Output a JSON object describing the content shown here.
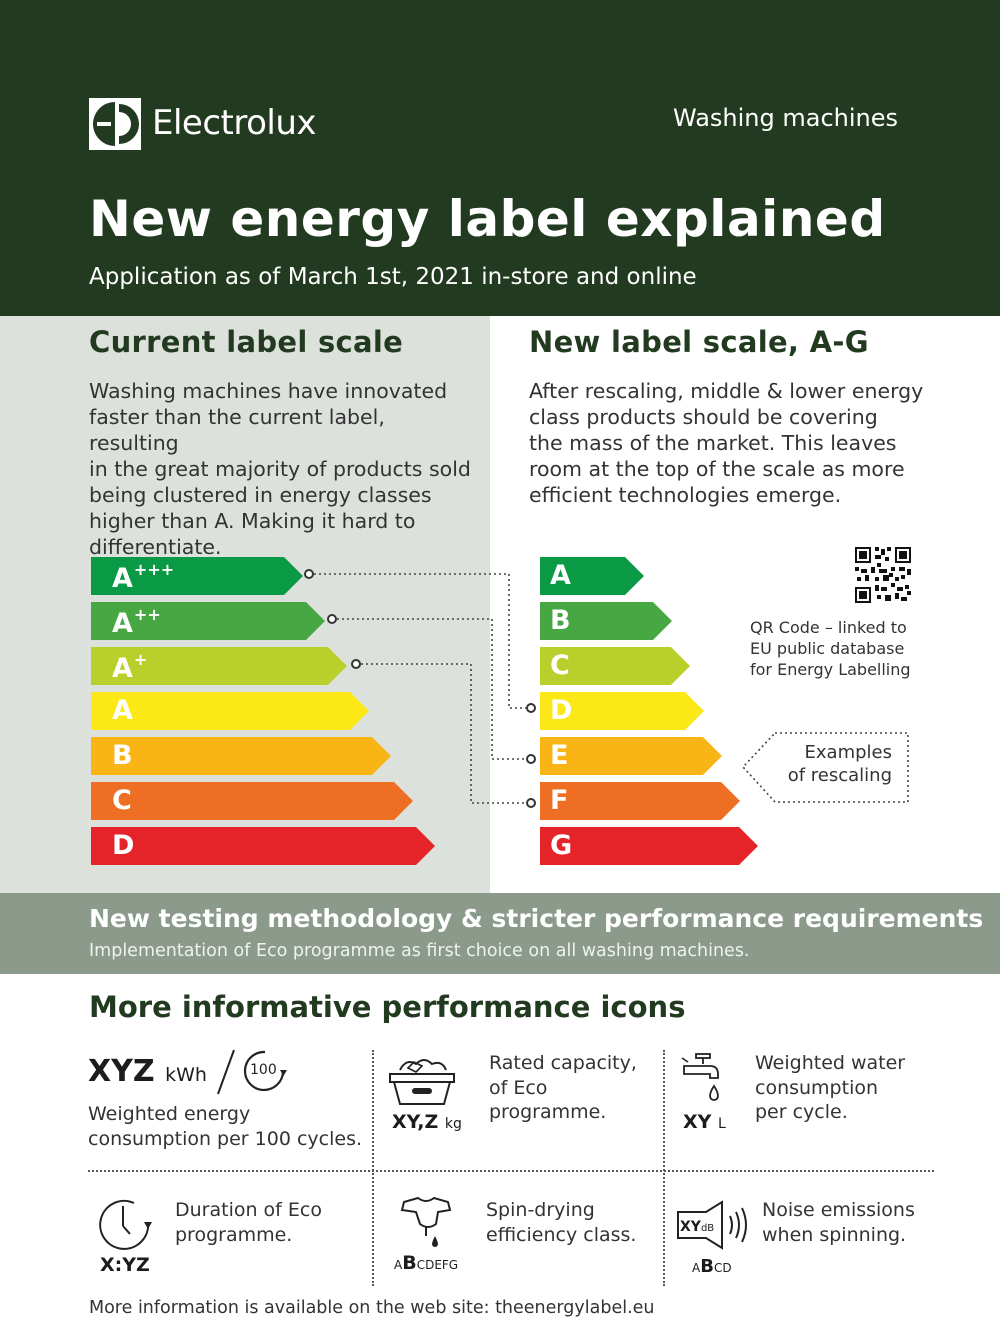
{
  "header": {
    "brand": "Electrolux",
    "category": "Washing machines",
    "title": "New energy label explained",
    "subtitle": "Application as of March 1st, 2021 in-store and online"
  },
  "current_scale": {
    "title": "Current label scale",
    "body": "Washing machines have innovated\nfaster than the current label, resulting\nin the great majority of products sold\nbeing clustered in energy classes\nhigher than A. Making it hard to\ndifferentiate.",
    "classes": [
      {
        "base": "A",
        "sup": "+++",
        "color": "#0a9a45"
      },
      {
        "base": "A",
        "sup": "++",
        "color": "#47a843"
      },
      {
        "base": "A",
        "sup": "+",
        "color": "#b8cf2c"
      },
      {
        "base": "A",
        "sup": "",
        "color": "#fbe816"
      },
      {
        "base": "B",
        "sup": "",
        "color": "#f9b515"
      },
      {
        "base": "C",
        "sup": "",
        "color": "#ee6e23"
      },
      {
        "base": "D",
        "sup": "",
        "color": "#e42429"
      }
    ]
  },
  "new_scale": {
    "title": "New label scale, A-G",
    "body": "After rescaling, middle & lower energy\nclass products should be covering\nthe mass of the market. This leaves\nroom at the top of the scale as more\nefficient technologies emerge.",
    "classes": [
      {
        "base": "A",
        "color": "#0a9a45"
      },
      {
        "base": "B",
        "color": "#47a843"
      },
      {
        "base": "C",
        "color": "#b8cf2c"
      },
      {
        "base": "D",
        "color": "#fbe816"
      },
      {
        "base": "E",
        "color": "#f9b515"
      },
      {
        "base": "F",
        "color": "#ee6e23"
      },
      {
        "base": "G",
        "color": "#e42429"
      }
    ],
    "qr_text": "QR Code – linked to\nEU public database\nfor Energy Labelling",
    "examples_text": "Examples\nof rescaling"
  },
  "band": {
    "title": "New testing methodology & stricter performance requirements",
    "subtitle": "Implementation of Eco programme as first choice on all washing machines."
  },
  "icons": {
    "title": "More informative performance icons",
    "energy": {
      "code": "XYZ",
      "unit": "kWh",
      "cycles": "100",
      "desc": "Weighted energy\nconsumption per 100 cycles."
    },
    "capacity": {
      "code": "XY,Z",
      "unit": "kg",
      "desc": "Rated capacity,\nof Eco\nprogramme."
    },
    "water": {
      "code": "XY",
      "unit": "L",
      "desc": "Weighted water\nconsumption\nper cycle."
    },
    "duration": {
      "code": "X:YZ",
      "desc": "Duration of Eco\nprogramme."
    },
    "spin": {
      "code_pre": "A",
      "code_big": "B",
      "code_post": "CDEFG",
      "desc": "Spin-drying\nefficiency class."
    },
    "noise": {
      "box_code": "XY",
      "box_unit": "dB",
      "code_pre": "A",
      "code_big": "B",
      "code_post": "CD",
      "desc": "Noise emissions\nwhen spinning."
    }
  },
  "footer": "More information is available on the web site: theenergylabel.eu"
}
